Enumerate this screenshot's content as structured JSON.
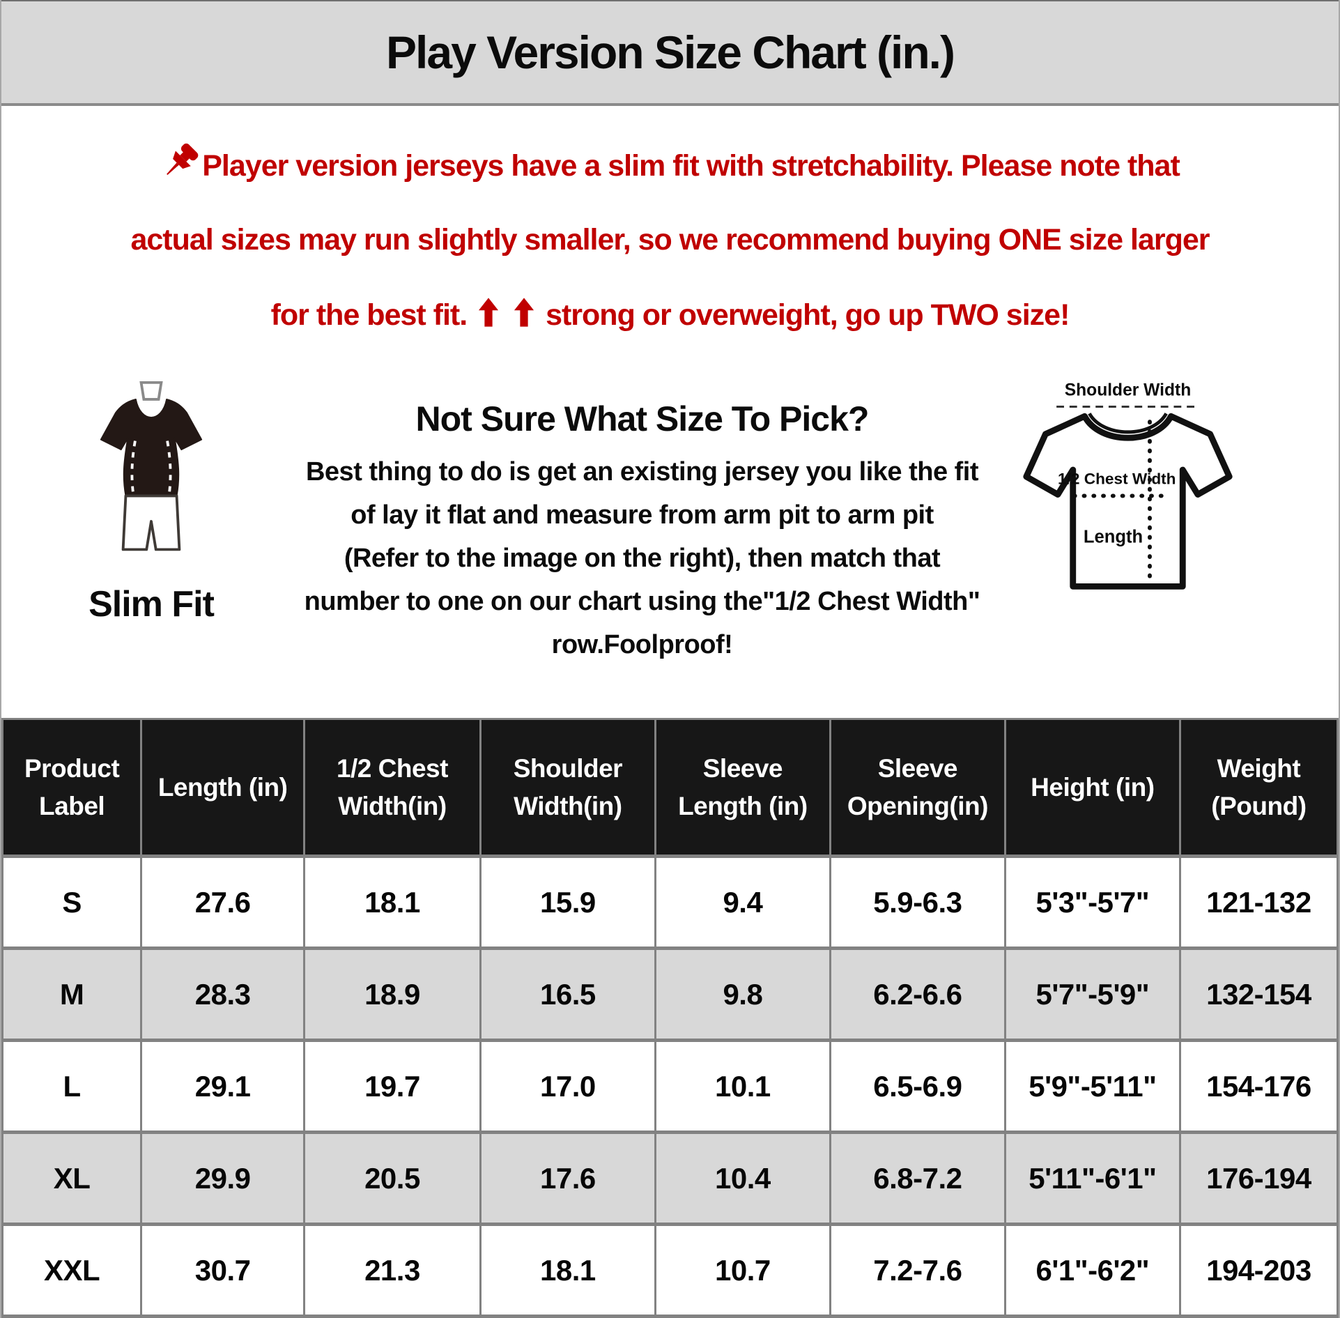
{
  "title": "Play Version Size Chart (in.)",
  "note": {
    "line1": "Player version jerseys have a slim fit with stretchability. Please note that",
    "line2": "actual sizes may run slightly smaller, so we recommend buying ONE size larger",
    "line3_prefix": "for the best fit.",
    "line3_suffix": "strong or overweight, go up TWO size!"
  },
  "fit": {
    "label": "Slim Fit",
    "icon": "slim-fit-figure-icon"
  },
  "guide": {
    "heading": "Not Sure What Size To Pick?",
    "lines": [
      "Best thing to do is get an existing jersey you like the fit",
      "of lay it flat and measure from arm pit to arm pit",
      "(Refer to the image on the right), then match that",
      "number to one on our chart using the\"1/2 Chest Width\"",
      "row.Foolproof!"
    ]
  },
  "diagram": {
    "icon": "tshirt-measurement-icon",
    "shoulder_label": "Shoulder Width",
    "chest_label": "1/2 Chest Width",
    "length_label": "Length"
  },
  "icons": {
    "pin": "pushpin-icon",
    "up_arrow": "up-arrow-icon"
  },
  "colors": {
    "accent_red": "#c00000",
    "title_bar_bg": "#d8d8d8",
    "table_header_bg": "#171717",
    "row_alt_bg": "#d8d8d8",
    "grid_border": "#828282"
  },
  "size_table": {
    "headers": [
      "Product Label",
      "Length (in)",
      "1/2 Chest Width(in)",
      "Shoulder Width(in)",
      "Sleeve Length (in)",
      "Sleeve Opening(in)",
      "Height (in)",
      "Weight (Pound)"
    ],
    "rows": [
      [
        "S",
        "27.6",
        "18.1",
        "15.9",
        "9.4",
        "5.9-6.3",
        "5'3\"-5'7\"",
        "121-132"
      ],
      [
        "M",
        "28.3",
        "18.9",
        "16.5",
        "9.8",
        "6.2-6.6",
        "5'7\"-5'9\"",
        "132-154"
      ],
      [
        "L",
        "29.1",
        "19.7",
        "17.0",
        "10.1",
        "6.5-6.9",
        "5'9\"-5'11\"",
        "154-176"
      ],
      [
        "XL",
        "29.9",
        "20.5",
        "17.6",
        "10.4",
        "6.8-7.2",
        "5'11\"-6'1\"",
        "176-194"
      ],
      [
        "XXL",
        "30.7",
        "21.3",
        "18.1",
        "10.7",
        "7.2-7.6",
        "6'1\"-6'2\"",
        "194-203"
      ]
    ]
  }
}
